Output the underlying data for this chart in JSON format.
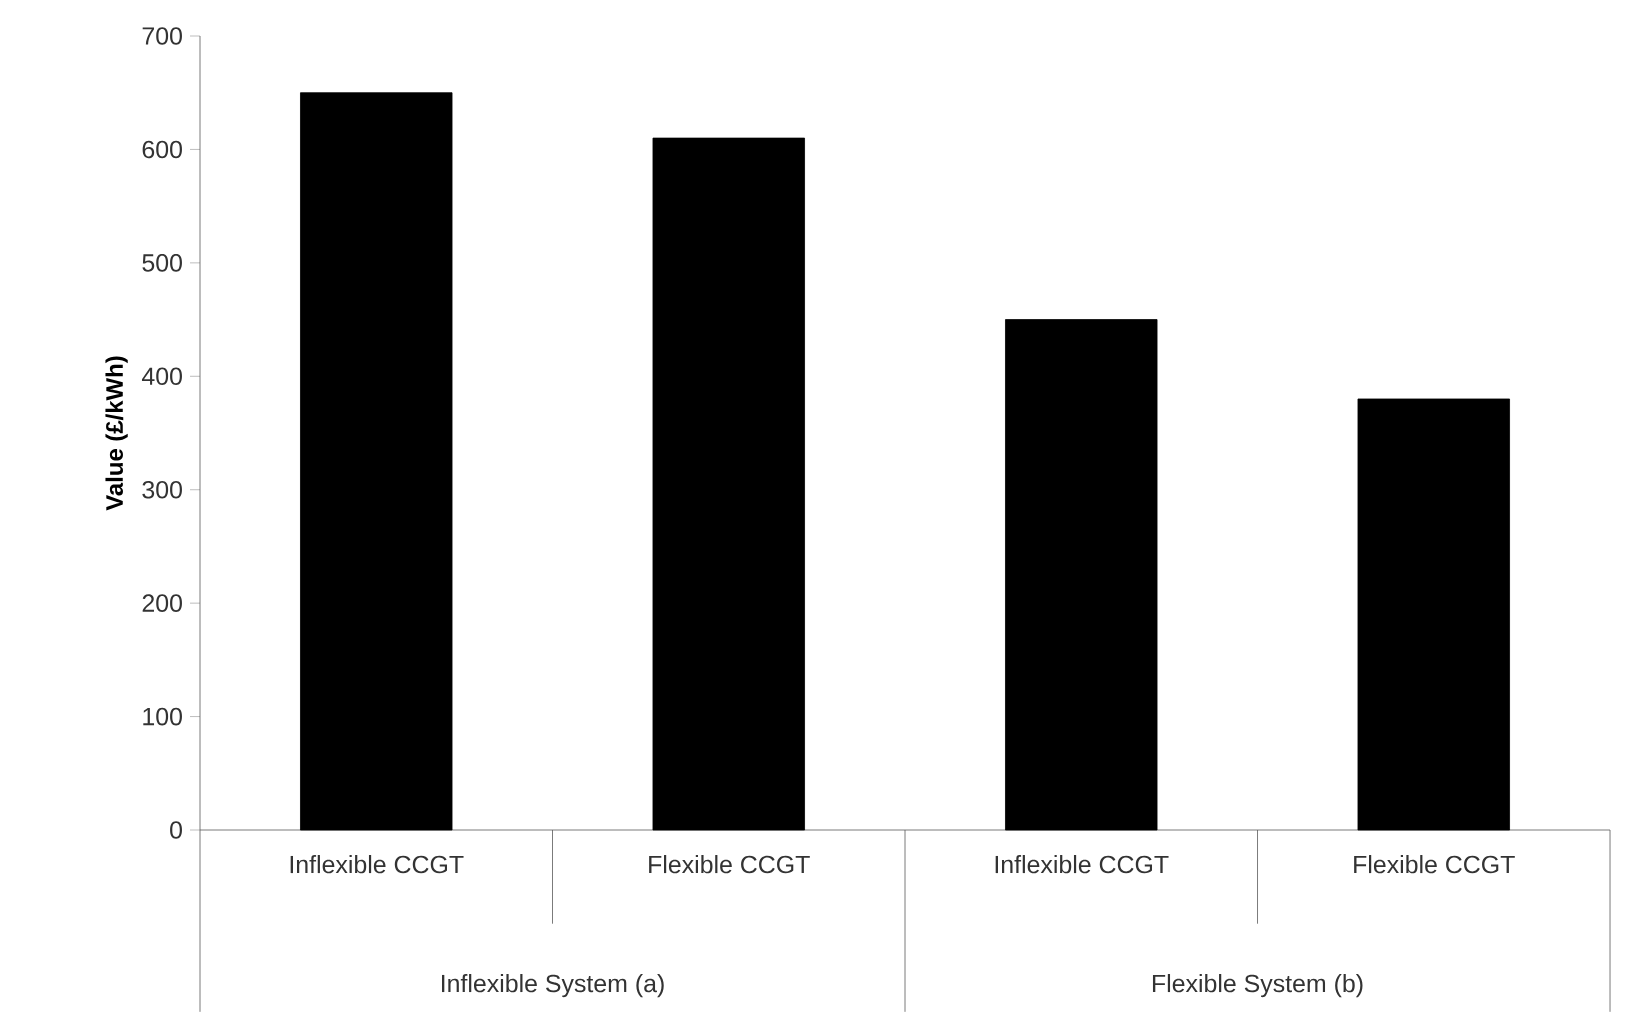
{
  "chart_data": {
    "type": "bar",
    "ylabel": "Value (£/kWh)",
    "categories": [
      "Inflexible CCGT",
      "Flexible CCGT",
      "Inflexible CCGT",
      "Flexible CCGT"
    ],
    "values": [
      650,
      610,
      450,
      380
    ],
    "color": "#000000",
    "ylim": [
      0,
      700
    ],
    "yticks": [
      0,
      100,
      200,
      300,
      400,
      500,
      600,
      700
    ],
    "annotations": [
      "Inflexible System (a)",
      "Flexible System (b)"
    ]
  }
}
